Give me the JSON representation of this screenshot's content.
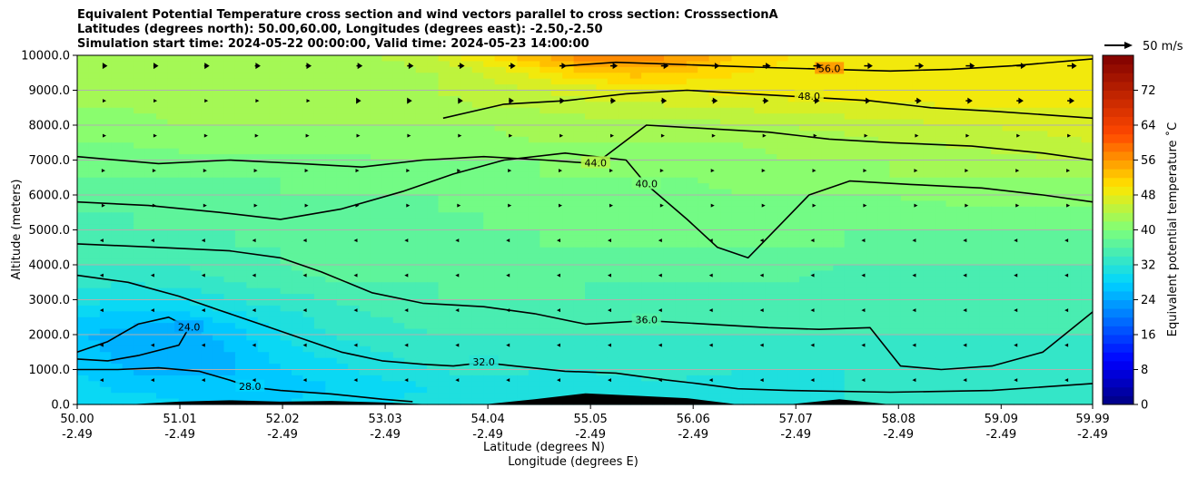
{
  "chart_data": {
    "type": "contourf",
    "title_lines": [
      "Equivalent Potential Temperature cross section and wind vectors parallel to cross section: CrosssectionA",
      "Latitudes (degrees north): 50.00,60.00, Longitudes (degrees east): -2.50,-2.50",
      "Simulation start time: 2024-05-22 00:00:00, Valid time: 2024-05-23 14:00:00"
    ],
    "xlabel_line1": "Latitude (degrees N)",
    "xlabel_line2": "Longitude (degrees E)",
    "ylabel": "Altitude (meters)",
    "x_range": [
      50.0,
      59.99
    ],
    "y_range": [
      0,
      10000
    ],
    "x_ticks": [
      {
        "pos": 50.0,
        "lat": "50.00",
        "lon": "-2.49"
      },
      {
        "pos": 51.01,
        "lat": "51.01",
        "lon": "-2.49"
      },
      {
        "pos": 52.02,
        "lat": "52.02",
        "lon": "-2.49"
      },
      {
        "pos": 53.03,
        "lat": "53.03",
        "lon": "-2.49"
      },
      {
        "pos": 54.04,
        "lat": "54.04",
        "lon": "-2.49"
      },
      {
        "pos": 55.05,
        "lat": "55.05",
        "lon": "-2.49"
      },
      {
        "pos": 56.06,
        "lat": "56.06",
        "lon": "-2.49"
      },
      {
        "pos": 57.07,
        "lat": "57.07",
        "lon": "-2.49"
      },
      {
        "pos": 58.08,
        "lat": "58.08",
        "lon": "-2.49"
      },
      {
        "pos": 59.09,
        "lat": "59.09",
        "lon": "-2.49"
      },
      {
        "pos": 59.99,
        "lat": "59.99",
        "lon": "-2.49"
      }
    ],
    "y_ticks": [
      {
        "value": 0,
        "label": "0.0"
      },
      {
        "value": 1000,
        "label": "1000.0"
      },
      {
        "value": 2000,
        "label": "2000.0"
      },
      {
        "value": 3000,
        "label": "3000.0"
      },
      {
        "value": 4000,
        "label": "4000.0"
      },
      {
        "value": 5000,
        "label": "5000.0"
      },
      {
        "value": 6000,
        "label": "6000.0"
      },
      {
        "value": 7000,
        "label": "7000.0"
      },
      {
        "value": 8000,
        "label": "8000.0"
      },
      {
        "value": 9000,
        "label": "9000.0"
      },
      {
        "value": 10000,
        "label": "10000.0"
      }
    ],
    "grid": "horizontal",
    "colorbar": {
      "label": "Equivalent potential temperature ˚C",
      "range": [
        0,
        80
      ],
      "ticks": [
        {
          "value": 0,
          "label": "0"
        },
        {
          "value": 8,
          "label": "8"
        },
        {
          "value": 16,
          "label": "16"
        },
        {
          "value": 24,
          "label": "24"
        },
        {
          "value": 32,
          "label": "32"
        },
        {
          "value": 40,
          "label": "40"
        },
        {
          "value": 48,
          "label": "48"
        },
        {
          "value": 56,
          "label": "56"
        },
        {
          "value": 64,
          "label": "64"
        },
        {
          "value": 72,
          "label": "72"
        }
      ],
      "stops": [
        {
          "value": 0,
          "color": "#000080"
        },
        {
          "value": 10,
          "color": "#0000ff"
        },
        {
          "value": 28,
          "color": "#00d4ff"
        },
        {
          "value": 40,
          "color": "#7dff7a"
        },
        {
          "value": 50,
          "color": "#ffe600"
        },
        {
          "value": 62,
          "color": "#ff4800"
        },
        {
          "value": 80,
          "color": "#800000"
        }
      ],
      "position": "right"
    },
    "quiver_key": {
      "label": "50 m/s",
      "speed": 50
    },
    "theta_field": {
      "lat": [
        50.0,
        50.5,
        51.0,
        51.5,
        52.0,
        52.5,
        53.0,
        53.5,
        54.0,
        54.5,
        55.0,
        55.5,
        56.0,
        56.5,
        57.0,
        57.5,
        58.0,
        58.5,
        59.0,
        59.5,
        59.99
      ],
      "alt": [
        0,
        500,
        1000,
        1500,
        2000,
        2500,
        3000,
        3500,
        4000,
        4500,
        5000,
        5500,
        6000,
        6500,
        7000,
        7500,
        8000,
        8500,
        9000,
        9500,
        10000
      ],
      "values": [
        [
          30,
          30,
          28,
          28,
          28,
          29,
          30,
          31,
          31,
          31,
          31,
          31,
          31,
          32,
          32,
          32,
          32,
          32,
          32,
          32,
          32
        ],
        [
          29,
          27,
          27,
          26,
          27,
          28,
          29,
          30,
          31,
          31,
          31,
          31,
          31,
          31,
          31,
          32,
          32,
          32,
          32,
          32,
          32
        ],
        [
          28,
          26,
          25,
          26,
          28,
          29,
          31,
          32,
          33,
          32,
          32,
          33,
          33,
          32,
          32,
          32,
          32,
          32,
          32,
          32,
          32
        ],
        [
          27,
          25,
          24,
          26,
          29,
          31,
          32,
          33,
          33,
          33,
          33,
          33,
          33,
          33,
          33,
          33,
          33,
          33,
          33,
          33,
          33
        ],
        [
          26,
          25,
          24,
          27,
          30,
          32,
          33,
          34,
          34,
          34,
          34,
          34,
          34,
          34,
          34,
          34,
          34,
          34,
          34,
          34,
          34
        ],
        [
          28,
          27,
          27,
          29,
          31,
          33,
          34,
          35,
          35,
          35,
          35,
          35,
          35,
          35,
          35,
          35,
          35,
          35,
          35,
          35,
          34
        ],
        [
          31,
          30,
          30,
          32,
          33,
          34,
          35,
          36,
          36,
          36,
          36,
          35,
          35,
          35,
          35,
          35,
          35,
          35,
          35,
          34,
          34
        ],
        [
          33,
          32,
          33,
          34,
          35,
          36,
          36,
          36,
          37,
          37,
          36,
          36,
          36,
          36,
          36,
          35,
          35,
          35,
          35,
          35,
          35
        ],
        [
          34,
          34,
          34,
          35,
          36,
          37,
          37,
          37,
          37,
          37,
          37,
          37,
          37,
          37,
          37,
          36,
          36,
          36,
          36,
          36,
          36
        ],
        [
          35,
          35,
          35,
          36,
          36,
          37,
          37,
          37,
          37,
          38,
          38,
          38,
          38,
          38,
          38,
          38,
          37,
          37,
          37,
          37,
          37
        ],
        [
          35,
          36,
          36,
          36,
          37,
          37,
          37,
          37,
          38,
          38,
          38,
          38,
          38,
          38,
          38,
          38,
          38,
          38,
          38,
          38,
          38
        ],
        [
          36,
          36,
          37,
          37,
          37,
          37,
          37,
          38,
          38,
          38,
          38,
          38,
          39,
          39,
          39,
          39,
          39,
          39,
          39,
          39,
          39
        ],
        [
          37,
          37,
          37,
          37,
          38,
          38,
          38,
          38,
          38,
          39,
          39,
          39,
          39,
          40,
          40,
          40,
          40,
          41,
          41,
          41,
          41
        ],
        [
          38,
          38,
          38,
          38,
          38,
          38,
          39,
          39,
          39,
          40,
          40,
          40,
          40,
          41,
          41,
          41,
          42,
          42,
          42,
          42,
          42
        ],
        [
          39,
          39,
          39,
          39,
          39,
          39,
          40,
          40,
          40,
          40,
          40,
          41,
          41,
          41,
          42,
          42,
          42,
          43,
          43,
          44,
          44
        ],
        [
          40,
          40,
          41,
          41,
          41,
          41,
          41,
          41,
          41,
          42,
          42,
          42,
          42,
          42,
          43,
          43,
          44,
          44,
          45,
          45,
          46
        ],
        [
          41,
          41,
          42,
          42,
          42,
          42,
          42,
          42,
          42,
          43,
          43,
          43,
          43,
          44,
          44,
          45,
          45,
          46,
          46,
          47,
          47
        ],
        [
          42,
          42,
          43,
          43,
          43,
          43,
          43,
          43,
          44,
          44,
          45,
          45,
          46,
          46,
          47,
          47,
          47,
          48,
          48,
          48,
          48
        ],
        [
          43,
          43,
          43,
          43,
          43,
          43,
          43,
          44,
          45,
          46,
          47,
          48,
          48,
          49,
          49,
          49,
          49,
          49,
          49,
          49,
          49
        ],
        [
          43,
          43,
          43,
          43,
          43,
          43,
          43,
          44,
          46,
          49,
          52,
          53,
          52,
          50,
          49,
          49,
          49,
          49,
          49,
          49,
          49
        ],
        [
          44,
          44,
          44,
          44,
          44,
          44,
          44,
          46,
          50,
          54,
          58,
          58,
          56,
          52,
          50,
          49,
          49,
          49,
          49,
          49,
          49
        ]
      ]
    },
    "contour_lines": [
      {
        "level": 24,
        "label": "24.0",
        "points": [
          [
            50.0,
            1500
          ],
          [
            50.3,
            1800
          ],
          [
            50.6,
            2300
          ],
          [
            50.9,
            2500
          ],
          [
            51.1,
            2200
          ],
          [
            51.0,
            1700
          ],
          [
            50.6,
            1400
          ],
          [
            50.3,
            1250
          ],
          [
            50.0,
            1300
          ]
        ]
      },
      {
        "level": 28,
        "label": "28.0",
        "points": [
          [
            50.0,
            1000
          ],
          [
            50.4,
            1000
          ],
          [
            50.8,
            1050
          ],
          [
            51.2,
            950
          ],
          [
            51.5,
            700
          ],
          [
            51.7,
            500
          ],
          [
            52.0,
            400
          ],
          [
            52.5,
            300
          ],
          [
            53.0,
            150
          ],
          [
            53.3,
            80
          ]
        ]
      },
      {
        "level": 32,
        "label": "32.0",
        "points": [
          [
            50.0,
            3700
          ],
          [
            50.5,
            3500
          ],
          [
            51.0,
            3100
          ],
          [
            51.4,
            2700
          ],
          [
            51.8,
            2300
          ],
          [
            52.2,
            1900
          ],
          [
            52.6,
            1500
          ],
          [
            53.0,
            1250
          ],
          [
            53.4,
            1150
          ],
          [
            53.7,
            1100
          ],
          [
            54.0,
            1200
          ],
          [
            54.3,
            1100
          ],
          [
            54.8,
            950
          ],
          [
            55.3,
            900
          ],
          [
            55.8,
            700
          ],
          [
            56.1,
            600
          ],
          [
            56.5,
            450
          ],
          [
            57.0,
            400
          ],
          [
            58.0,
            350
          ],
          [
            59.0,
            400
          ],
          [
            59.99,
            600
          ]
        ]
      },
      {
        "level": 36,
        "label": "36.0",
        "points": [
          [
            50.0,
            4600
          ],
          [
            50.8,
            4500
          ],
          [
            51.5,
            4400
          ],
          [
            52.0,
            4200
          ],
          [
            52.4,
            3800
          ],
          [
            52.9,
            3200
          ],
          [
            53.4,
            2900
          ],
          [
            54.0,
            2800
          ],
          [
            54.5,
            2600
          ],
          [
            55.0,
            2300
          ],
          [
            55.6,
            2400
          ],
          [
            56.2,
            2300
          ],
          [
            56.8,
            2200
          ],
          [
            57.3,
            2150
          ],
          [
            57.8,
            2200
          ],
          [
            58.1,
            1100
          ],
          [
            58.5,
            1000
          ],
          [
            59.0,
            1100
          ],
          [
            59.5,
            1500
          ],
          [
            59.99,
            2650
          ]
        ]
      },
      {
        "level": 40,
        "label": "40.0",
        "points": [
          [
            50.0,
            5800
          ],
          [
            50.7,
            5700
          ],
          [
            51.4,
            5500
          ],
          [
            52.0,
            5300
          ],
          [
            52.6,
            5600
          ],
          [
            53.2,
            6100
          ],
          [
            53.7,
            6600
          ],
          [
            54.2,
            7000
          ],
          [
            54.8,
            7200
          ],
          [
            55.4,
            7000
          ],
          [
            55.6,
            6300
          ],
          [
            56.0,
            5300
          ],
          [
            56.3,
            4500
          ],
          [
            56.6,
            4200
          ],
          [
            56.9,
            5100
          ],
          [
            57.2,
            6000
          ],
          [
            57.6,
            6400
          ],
          [
            58.2,
            6300
          ],
          [
            58.9,
            6200
          ],
          [
            59.5,
            6000
          ],
          [
            59.99,
            5800
          ]
        ]
      },
      {
        "level": 44,
        "label": "44.0",
        "points": [
          [
            50.0,
            7100
          ],
          [
            50.8,
            6900
          ],
          [
            51.5,
            7000
          ],
          [
            52.2,
            6900
          ],
          [
            52.8,
            6800
          ],
          [
            53.4,
            7000
          ],
          [
            54.0,
            7100
          ],
          [
            54.6,
            7000
          ],
          [
            55.1,
            6900
          ],
          [
            55.6,
            8000
          ],
          [
            56.2,
            7900
          ],
          [
            56.8,
            7800
          ],
          [
            57.4,
            7600
          ],
          [
            58.0,
            7500
          ],
          [
            58.8,
            7400
          ],
          [
            59.5,
            7200
          ],
          [
            59.99,
            7000
          ]
        ]
      },
      {
        "level": 48,
        "label": "48.0",
        "points": [
          [
            53.6,
            8200
          ],
          [
            54.2,
            8600
          ],
          [
            54.8,
            8700
          ],
          [
            55.4,
            8900
          ],
          [
            56.0,
            9000
          ],
          [
            56.6,
            8900
          ],
          [
            57.2,
            8800
          ],
          [
            57.8,
            8700
          ],
          [
            58.4,
            8500
          ],
          [
            59.0,
            8400
          ],
          [
            59.5,
            8300
          ],
          [
            59.99,
            8200
          ]
        ]
      },
      {
        "level": 56,
        "label": "56.0",
        "points": [
          [
            54.8,
            9700
          ],
          [
            55.3,
            9800
          ],
          [
            55.8,
            9750
          ],
          [
            56.3,
            9700
          ],
          [
            56.8,
            9650
          ],
          [
            57.4,
            9600
          ],
          [
            58.0,
            9550
          ],
          [
            58.6,
            9600
          ],
          [
            59.2,
            9700
          ],
          [
            59.99,
            9900
          ]
        ]
      }
    ],
    "terrain_alt": [
      0,
      0,
      80,
      120,
      80,
      100,
      60,
      0,
      0,
      150,
      320,
      250,
      180,
      0,
      0,
      150,
      0,
      0,
      0,
      0,
      0
    ],
    "wind_u_profile": [
      {
        "alt": 10000,
        "u": 20
      },
      {
        "alt": 9000,
        "u": 16
      },
      {
        "alt": 8000,
        "u": 10
      },
      {
        "alt": 7000,
        "u": 5
      },
      {
        "alt": 6000,
        "u": 2
      },
      {
        "alt": 5000,
        "u": -4
      },
      {
        "alt": 4000,
        "u": -3
      },
      {
        "alt": 3000,
        "u": -2
      },
      {
        "alt": 2000,
        "u": -1
      },
      {
        "alt": 1000,
        "u": -1
      },
      {
        "alt": 0,
        "u": 0
      }
    ]
  }
}
